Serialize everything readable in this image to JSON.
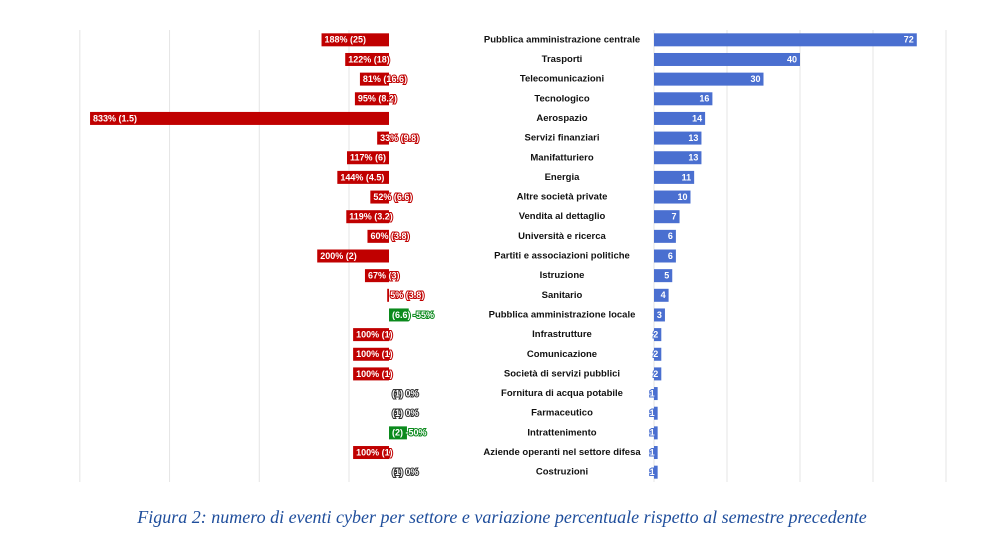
{
  "chart_data": {
    "type": "butterfly",
    "caption": "Figura 2: numero di eventi cyber per settore e variazione percentuale rispetto al semestre precedente",
    "categories": [
      "Pubblica amministrazione centrale",
      "Trasporti",
      "Telecomunicazioni",
      "Tecnologico",
      "Aerospazio",
      "Servizi finanziari",
      "Manifatturiero",
      "Energia",
      "Altre società private",
      "Vendita al dettaglio",
      "Università e ricerca",
      "Partiti e associazioni politiche",
      "Istruzione",
      "Sanitario",
      "Pubblica amministrazione locale",
      "Infrastrutture",
      "Comunicazione",
      "Società di servizi pubblici",
      "Fornitura di acqua potabile",
      "Farmaceutico",
      "Intrattenimento",
      "Aziende operanti nel settore difesa",
      "Costruzioni"
    ],
    "change": {
      "values": [
        188,
        122,
        81,
        95,
        833,
        33,
        117,
        144,
        52,
        119,
        60,
        200,
        67,
        5,
        -55,
        100,
        100,
        100,
        0,
        0,
        -50,
        100,
        0
      ],
      "value_labels": [
        "188% (25)",
        "122% (18)",
        "81% (16.6)",
        "95% (8.2)",
        "833% (1.5)",
        "33% (9.8)",
        "117% (6)",
        "144% (4.5)",
        "52% (6.6)",
        "119% (3.2)",
        "60% (3.8)",
        "200% (2)",
        "67% (3)",
        "5% (3.8)",
        "(6.6) -55%",
        "100% (1)",
        "100% (1)",
        "100% (1)",
        "(1) 0%",
        "(1) 0%",
        "(2) -50%",
        "100% (1)",
        "(1) 0%"
      ],
      "color_positive": "#c00000",
      "color_negative": "#0b8a1d",
      "xlim": [
        -100,
        900
      ],
      "xticks": [
        0,
        250,
        500,
        750
      ],
      "grid": true
    },
    "count": {
      "values": [
        72,
        40,
        30,
        16,
        14,
        13,
        13,
        11,
        10,
        7,
        6,
        6,
        5,
        4,
        3,
        2,
        2,
        2,
        1,
        1,
        1,
        1,
        1
      ],
      "color": "#4a6fd0",
      "xlim": [
        0,
        80
      ],
      "xticks": [
        0,
        20,
        40,
        60,
        80
      ],
      "grid": true
    }
  }
}
